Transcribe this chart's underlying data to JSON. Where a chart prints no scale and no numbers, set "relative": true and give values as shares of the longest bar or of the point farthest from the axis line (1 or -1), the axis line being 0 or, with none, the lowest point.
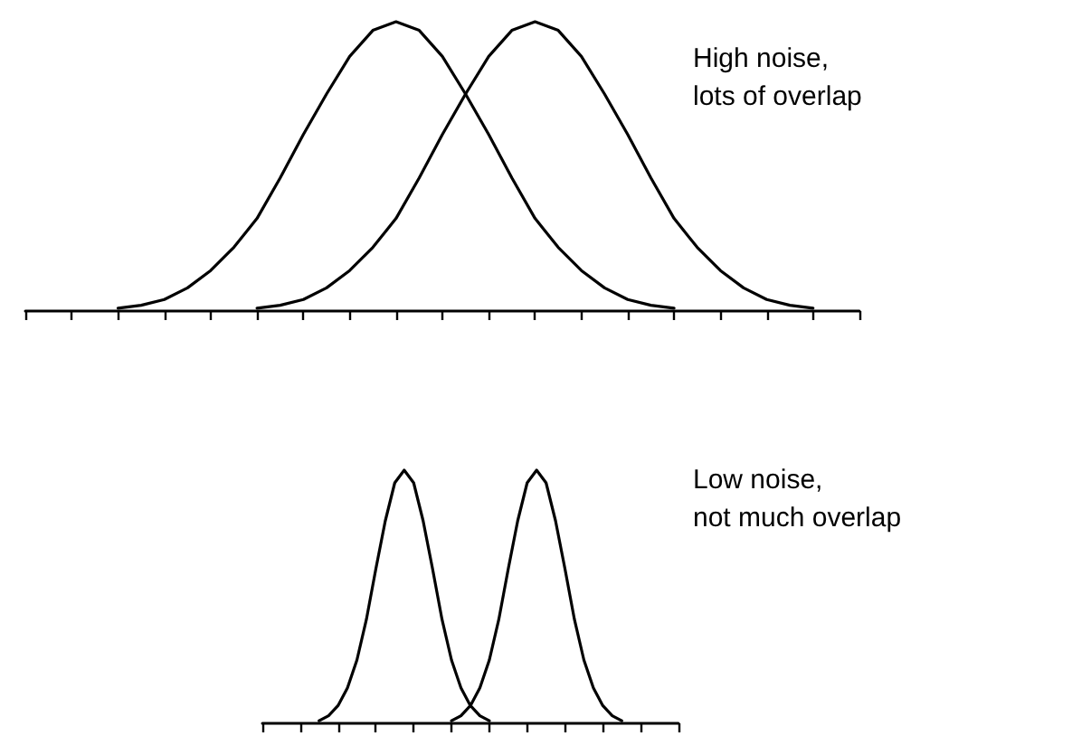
{
  "chart_data": [
    {
      "type": "line",
      "relative": true,
      "tick_labels": false,
      "marker": "none",
      "line_style": "solid",
      "annotations": [
        "High noise,\nlots of overlap"
      ],
      "categories": [
        null,
        null,
        null,
        null,
        null,
        null,
        null,
        null,
        null,
        null,
        null,
        null,
        null,
        null,
        null,
        null,
        null,
        null,
        null,
        null,
        null,
        null,
        null,
        null,
        null,
        null,
        null,
        null,
        null,
        null,
        null,
        null,
        null,
        null,
        null,
        null,
        null
      ],
      "series": [
        {
          "color": "#000000",
          "values": [
            null,
            null,
            null,
            null,
            0.01,
            0.02,
            0.04,
            0.08,
            0.14,
            0.22,
            0.32,
            0.46,
            0.61,
            0.75,
            0.88,
            0.97,
            1,
            0.97,
            0.88,
            0.75,
            0.61,
            0.46,
            0.32,
            0.22,
            0.14,
            0.08,
            0.04,
            0.02,
            0.01,
            null,
            null,
            null,
            null,
            null,
            null,
            null,
            null
          ]
        },
        {
          "color": "#000000",
          "values": [
            null,
            null,
            null,
            null,
            null,
            null,
            null,
            null,
            null,
            null,
            0.01,
            0.02,
            0.04,
            0.08,
            0.14,
            0.22,
            0.32,
            0.46,
            0.61,
            0.75,
            0.88,
            0.97,
            1,
            0.97,
            0.88,
            0.75,
            0.61,
            0.46,
            0.32,
            0.22,
            0.14,
            0.08,
            0.04,
            0.02,
            0.01,
            null,
            null
          ]
        }
      ]
    },
    {
      "type": "line",
      "relative": true,
      "tick_labels": false,
      "marker": "none",
      "line_style": "solid",
      "annotations": [
        "Low noise,\nnot much overlap"
      ],
      "categories": [
        null,
        null,
        null,
        null,
        null,
        null,
        null,
        null,
        null,
        null,
        null,
        null,
        null,
        null,
        null,
        null,
        null,
        null,
        null,
        null,
        null,
        null,
        null,
        null,
        null,
        null,
        null,
        null,
        null,
        null,
        null,
        null,
        null,
        null,
        null,
        null,
        null,
        null,
        null,
        null,
        null,
        null,
        null,
        null,
        null
      ],
      "series": [
        {
          "color": "#000000",
          "values": [
            null,
            null,
            null,
            null,
            null,
            null,
            0.01,
            0.03,
            0.07,
            0.14,
            0.25,
            0.41,
            0.61,
            0.8,
            0.95,
            1,
            0.95,
            0.8,
            0.61,
            0.41,
            0.25,
            0.14,
            0.07,
            0.03,
            0.01,
            null,
            null,
            null,
            null,
            null,
            null,
            null,
            null,
            null,
            null,
            null,
            null,
            null,
            null,
            null,
            null,
            null,
            null,
            null,
            null
          ]
        },
        {
          "color": "#000000",
          "values": [
            null,
            null,
            null,
            null,
            null,
            null,
            null,
            null,
            null,
            null,
            null,
            null,
            null,
            null,
            null,
            null,
            null,
            null,
            null,
            null,
            0.01,
            0.03,
            0.07,
            0.14,
            0.25,
            0.41,
            0.61,
            0.8,
            0.95,
            1,
            0.95,
            0.8,
            0.61,
            0.41,
            0.25,
            0.14,
            0.07,
            0.03,
            0.01,
            null,
            null,
            null,
            null,
            null,
            null
          ]
        }
      ]
    }
  ]
}
